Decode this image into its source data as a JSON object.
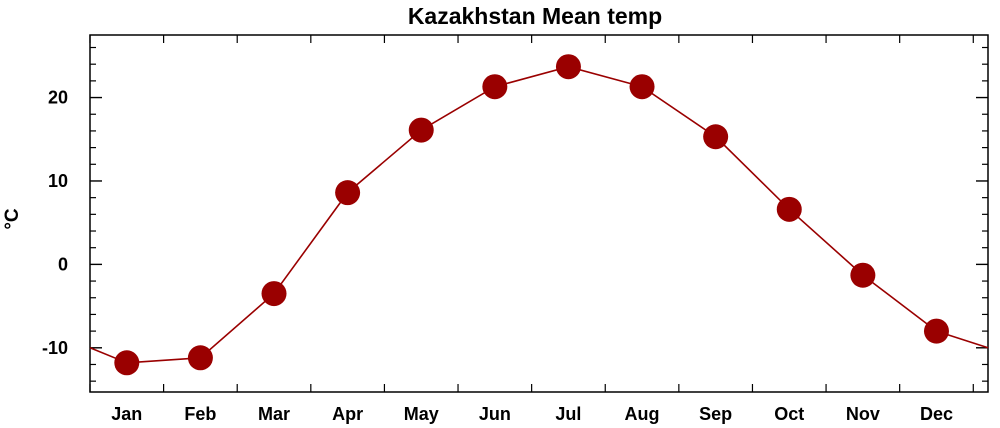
{
  "chart_data": {
    "type": "line",
    "title": "Kazakhstan Mean temp",
    "xlabel": "",
    "ylabel": "°C",
    "categories": [
      "Jan",
      "Feb",
      "Mar",
      "Apr",
      "May",
      "Jun",
      "Jul",
      "Aug",
      "Sep",
      "Oct",
      "Nov",
      "Dec"
    ],
    "series": [
      {
        "values": [
          -11.8,
          -11.2,
          -3.5,
          8.6,
          16.1,
          21.3,
          23.7,
          21.3,
          15.3,
          6.6,
          -1.3,
          -8.0
        ]
      }
    ],
    "wrap_values": {
      "before": -10.0,
      "after": -10.0
    },
    "ylim": [
      -15.3,
      27.5
    ],
    "yticks": [
      -10,
      0,
      10,
      20
    ],
    "yminor_step": 2,
    "grid": false,
    "legend": "none",
    "colors": {
      "line": "#9a0000",
      "marker": "#9a0000",
      "axis": "#000000"
    }
  }
}
